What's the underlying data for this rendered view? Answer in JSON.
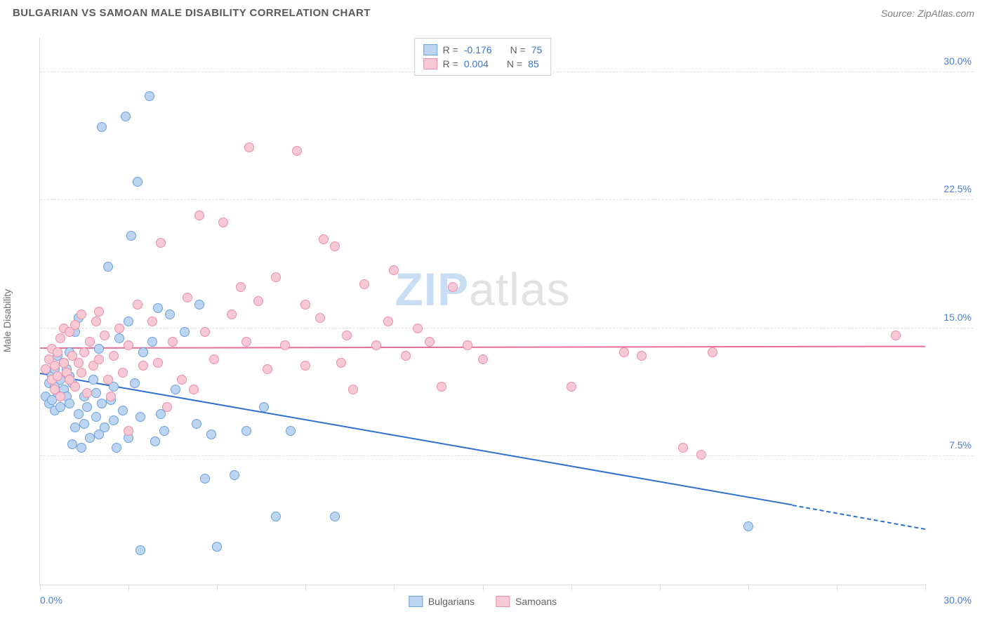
{
  "header": {
    "title": "BULGARIAN VS SAMOAN MALE DISABILITY CORRELATION CHART",
    "source": "Source: ZipAtlas.com"
  },
  "chart": {
    "type": "scatter",
    "ylabel": "Male Disability",
    "xlim": [
      0,
      30
    ],
    "ylim": [
      0,
      32
    ],
    "x_ticks_minor": [
      0,
      3,
      6,
      9,
      12,
      15,
      18,
      21,
      24,
      27,
      30
    ],
    "x_tick_labels": [
      {
        "val": 0,
        "label": "0.0%",
        "color": "#4a7fd6",
        "align": "left"
      },
      {
        "val": 30,
        "label": "30.0%",
        "color": "#4a7fd6",
        "align": "right"
      }
    ],
    "y_gridlines": [
      7.5,
      15.0,
      22.5,
      30.0
    ],
    "y_tick_labels": [
      {
        "val": 7.5,
        "label": "7.5%",
        "color": "#4a7fd6"
      },
      {
        "val": 15.0,
        "label": "15.0%",
        "color": "#4a7fd6"
      },
      {
        "val": 22.5,
        "label": "22.5%",
        "color": "#4a7fd6"
      },
      {
        "val": 30.0,
        "label": "30.0%",
        "color": "#4a7fd6"
      }
    ],
    "grid_color": "#dddddd",
    "axis_color": "#d8d8d8",
    "background_color": "#ffffff",
    "watermark": {
      "prefix": "ZIP",
      "suffix": "atlas"
    },
    "legend_top": [
      {
        "swatch_fill": "#bcd6f2",
        "swatch_border": "#6b9fe0",
        "r_label": "R  =",
        "r_value": "-0.176",
        "r_color": "#3d73d1",
        "n_label": "N  =",
        "n_value": "75",
        "n_color": "#3d73d1"
      },
      {
        "swatch_fill": "#f6c9d5",
        "swatch_border": "#e98fa8",
        "r_label": "R  =",
        "r_value": "0.004",
        "r_color": "#3d73d1",
        "n_label": "N  =",
        "n_value": "85",
        "n_color": "#3d73d1"
      }
    ],
    "legend_bottom": [
      {
        "swatch_fill": "#bcd6f2",
        "swatch_border": "#6b9fe0",
        "label": "Bulgarians"
      },
      {
        "swatch_fill": "#f6c9d5",
        "swatch_border": "#e98fa8",
        "label": "Samoans"
      }
    ],
    "series": [
      {
        "name": "Bulgarians",
        "marker_fill": "#bcd6f2",
        "marker_border": "#6b9fe0",
        "marker_size": 14,
        "trend": {
          "color": "#2f6fd0",
          "x1": 0,
          "y1": 12.4,
          "x2": 25.5,
          "y2": 4.7,
          "dash_to_x": 30,
          "dash_to_y": 3.3
        },
        "points": [
          [
            0.2,
            11.0
          ],
          [
            0.3,
            11.8
          ],
          [
            0.3,
            10.6
          ],
          [
            0.4,
            12.2
          ],
          [
            0.4,
            10.8
          ],
          [
            0.5,
            11.6
          ],
          [
            0.5,
            12.6
          ],
          [
            0.5,
            10.2
          ],
          [
            0.6,
            11.2
          ],
          [
            0.6,
            13.4
          ],
          [
            0.7,
            12.0
          ],
          [
            0.7,
            10.4
          ],
          [
            0.8,
            11.4
          ],
          [
            0.8,
            13.0
          ],
          [
            0.9,
            12.6
          ],
          [
            0.9,
            11.0
          ],
          [
            1.0,
            10.6
          ],
          [
            1.0,
            12.2
          ],
          [
            1.0,
            13.6
          ],
          [
            1.1,
            11.8
          ],
          [
            1.1,
            8.2
          ],
          [
            1.2,
            14.8
          ],
          [
            1.2,
            9.2
          ],
          [
            1.3,
            15.6
          ],
          [
            1.3,
            10.0
          ],
          [
            1.4,
            8.0
          ],
          [
            1.5,
            11.0
          ],
          [
            1.5,
            9.4
          ],
          [
            1.6,
            10.4
          ],
          [
            1.7,
            8.6
          ],
          [
            1.8,
            12.0
          ],
          [
            1.9,
            9.8
          ],
          [
            1.9,
            11.2
          ],
          [
            2.0,
            8.8
          ],
          [
            2.0,
            13.8
          ],
          [
            2.1,
            26.8
          ],
          [
            2.1,
            10.6
          ],
          [
            2.2,
            9.2
          ],
          [
            2.3,
            18.6
          ],
          [
            2.4,
            10.8
          ],
          [
            2.5,
            9.6
          ],
          [
            2.5,
            11.6
          ],
          [
            2.6,
            8.0
          ],
          [
            2.7,
            14.4
          ],
          [
            2.8,
            10.2
          ],
          [
            2.9,
            27.4
          ],
          [
            3.0,
            8.6
          ],
          [
            3.0,
            15.4
          ],
          [
            3.1,
            20.4
          ],
          [
            3.2,
            11.8
          ],
          [
            3.3,
            23.6
          ],
          [
            3.4,
            9.8
          ],
          [
            3.4,
            2.0
          ],
          [
            3.5,
            13.6
          ],
          [
            3.7,
            28.6
          ],
          [
            3.8,
            14.2
          ],
          [
            3.9,
            8.4
          ],
          [
            4.0,
            16.2
          ],
          [
            4.1,
            10.0
          ],
          [
            4.2,
            9.0
          ],
          [
            4.4,
            15.8
          ],
          [
            4.6,
            11.4
          ],
          [
            4.9,
            14.8
          ],
          [
            5.3,
            9.4
          ],
          [
            5.4,
            16.4
          ],
          [
            5.6,
            6.2
          ],
          [
            5.8,
            8.8
          ],
          [
            6.0,
            2.2
          ],
          [
            6.6,
            6.4
          ],
          [
            7.0,
            9.0
          ],
          [
            7.6,
            10.4
          ],
          [
            8.0,
            4.0
          ],
          [
            10.0,
            4.0
          ],
          [
            24.0,
            3.4
          ],
          [
            8.5,
            9.0
          ]
        ]
      },
      {
        "name": "Samoans",
        "marker_fill": "#f6c9d5",
        "marker_border": "#e98fa8",
        "marker_size": 14,
        "trend": {
          "color": "#e66f93",
          "x1": 0,
          "y1": 13.9,
          "x2": 30,
          "y2": 14.0
        },
        "points": [
          [
            0.2,
            12.6
          ],
          [
            0.3,
            13.2
          ],
          [
            0.4,
            12.0
          ],
          [
            0.4,
            13.8
          ],
          [
            0.5,
            12.8
          ],
          [
            0.5,
            11.4
          ],
          [
            0.6,
            13.6
          ],
          [
            0.6,
            12.2
          ],
          [
            0.7,
            14.4
          ],
          [
            0.7,
            11.0
          ],
          [
            0.8,
            13.0
          ],
          [
            0.8,
            15.0
          ],
          [
            0.9,
            12.4
          ],
          [
            1.0,
            14.8
          ],
          [
            1.0,
            12.0
          ],
          [
            1.1,
            13.4
          ],
          [
            1.2,
            11.6
          ],
          [
            1.2,
            15.2
          ],
          [
            1.3,
            13.0
          ],
          [
            1.4,
            12.4
          ],
          [
            1.4,
            15.8
          ],
          [
            1.5,
            13.6
          ],
          [
            1.6,
            11.2
          ],
          [
            1.7,
            14.2
          ],
          [
            1.8,
            12.8
          ],
          [
            1.9,
            15.4
          ],
          [
            2.0,
            13.2
          ],
          [
            2.0,
            16.0
          ],
          [
            2.2,
            14.6
          ],
          [
            2.3,
            12.0
          ],
          [
            2.4,
            11.0
          ],
          [
            2.5,
            13.4
          ],
          [
            2.7,
            15.0
          ],
          [
            2.8,
            12.4
          ],
          [
            3.0,
            14.0
          ],
          [
            3.0,
            9.0
          ],
          [
            3.3,
            16.4
          ],
          [
            3.5,
            12.8
          ],
          [
            3.8,
            15.4
          ],
          [
            4.0,
            13.0
          ],
          [
            4.1,
            20.0
          ],
          [
            4.3,
            10.4
          ],
          [
            4.5,
            14.2
          ],
          [
            4.8,
            12.0
          ],
          [
            5.0,
            16.8
          ],
          [
            5.2,
            11.4
          ],
          [
            5.4,
            21.6
          ],
          [
            5.6,
            14.8
          ],
          [
            5.9,
            13.2
          ],
          [
            6.2,
            21.2
          ],
          [
            6.5,
            15.8
          ],
          [
            6.8,
            17.4
          ],
          [
            7.0,
            14.2
          ],
          [
            7.1,
            25.6
          ],
          [
            7.4,
            16.6
          ],
          [
            7.7,
            12.6
          ],
          [
            8.0,
            18.0
          ],
          [
            8.3,
            14.0
          ],
          [
            8.7,
            25.4
          ],
          [
            9.0,
            16.4
          ],
          [
            9.0,
            12.8
          ],
          [
            9.5,
            15.6
          ],
          [
            10.0,
            19.8
          ],
          [
            10.2,
            13.0
          ],
          [
            10.4,
            14.6
          ],
          [
            10.6,
            11.4
          ],
          [
            11.0,
            17.6
          ],
          [
            11.4,
            14.0
          ],
          [
            11.8,
            15.4
          ],
          [
            12.0,
            18.4
          ],
          [
            12.4,
            13.4
          ],
          [
            12.8,
            15.0
          ],
          [
            13.2,
            14.2
          ],
          [
            13.6,
            11.6
          ],
          [
            14.0,
            17.4
          ],
          [
            14.5,
            14.0
          ],
          [
            15.0,
            13.2
          ],
          [
            18.0,
            11.6
          ],
          [
            19.8,
            13.6
          ],
          [
            20.4,
            13.4
          ],
          [
            21.8,
            8.0
          ],
          [
            22.4,
            7.6
          ],
          [
            22.8,
            13.6
          ],
          [
            29.0,
            14.6
          ],
          [
            9.6,
            20.2
          ]
        ]
      }
    ]
  }
}
